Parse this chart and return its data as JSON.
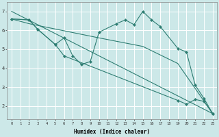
{
  "xlabel": "Humidex (Indice chaleur)",
  "bg_color": "#cce8e8",
  "grid_color": "#ffffff",
  "line_color": "#2e7d72",
  "xlim": [
    -0.5,
    23.5
  ],
  "ylim": [
    1.3,
    7.5
  ],
  "yticks": [
    2,
    3,
    4,
    5,
    6,
    7
  ],
  "xticks": [
    0,
    1,
    2,
    3,
    4,
    5,
    6,
    7,
    8,
    9,
    10,
    11,
    12,
    13,
    14,
    15,
    16,
    17,
    18,
    19,
    20,
    21,
    22,
    23
  ],
  "lines": [
    {
      "x": [
        0,
        23
      ],
      "y": [
        7.0,
        1.6
      ],
      "has_markers": false
    },
    {
      "x": [
        0,
        2,
        10,
        15,
        19,
        23
      ],
      "y": [
        6.6,
        6.35,
        5.6,
        5.15,
        4.25,
        1.6
      ],
      "has_markers": false
    },
    {
      "x": [
        0,
        2,
        3,
        5,
        6,
        7,
        8,
        9,
        10,
        12,
        13,
        14,
        15,
        16,
        17,
        19,
        20,
        21,
        22,
        23
      ],
      "y": [
        6.6,
        6.55,
        6.05,
        5.25,
        5.6,
        4.65,
        4.2,
        4.35,
        5.9,
        6.35,
        6.55,
        6.3,
        7.0,
        6.55,
        6.2,
        5.05,
        4.85,
        3.1,
        2.4,
        1.6
      ],
      "has_markers": true
    },
    {
      "x": [
        0,
        2,
        3,
        5,
        6,
        19,
        20,
        21,
        22,
        23
      ],
      "y": [
        6.6,
        6.55,
        6.05,
        5.25,
        4.65,
        2.3,
        2.1,
        2.35,
        2.25,
        1.6
      ],
      "has_markers": true
    }
  ]
}
